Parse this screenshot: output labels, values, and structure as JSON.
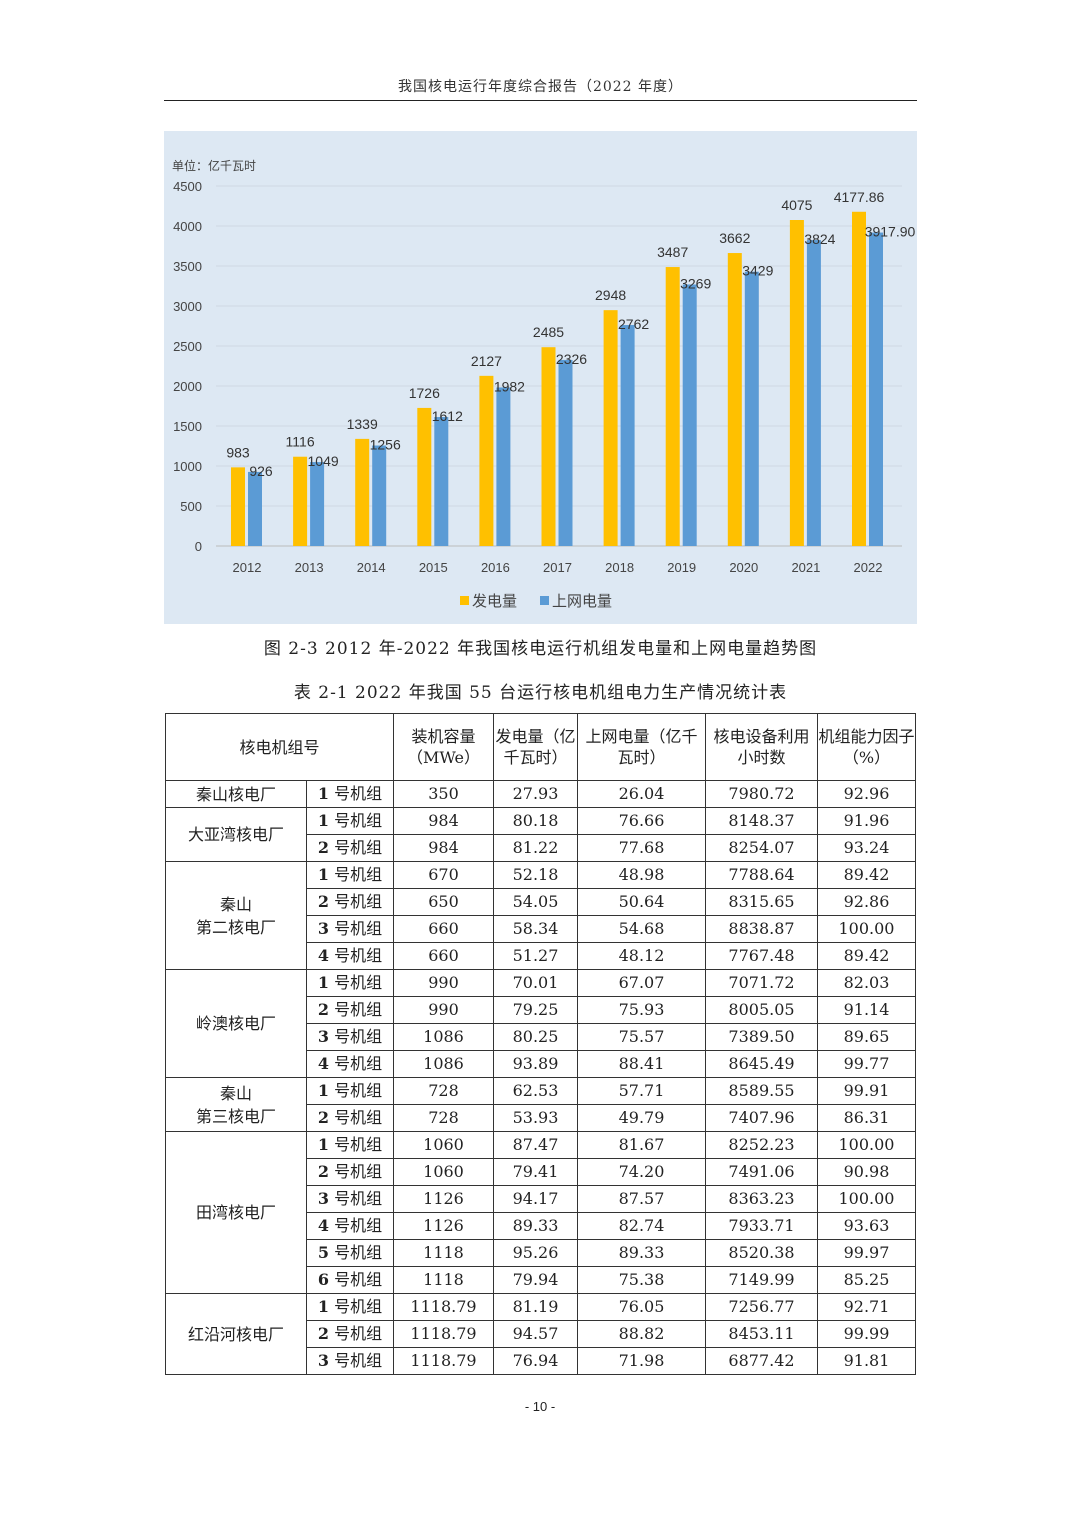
{
  "header": {
    "title": "我国核电运行年度综合报告（2022 年度）"
  },
  "chart_data": {
    "type": "bar",
    "unit_label": "单位：亿千瓦时",
    "categories": [
      "2012",
      "2013",
      "2014",
      "2015",
      "2016",
      "2017",
      "2018",
      "2019",
      "2020",
      "2021",
      "2022"
    ],
    "series": [
      {
        "name": "发电量",
        "color": "#FFC000",
        "values": [
          983,
          1116,
          1339,
          1726,
          2127,
          2485,
          2948,
          3487,
          3662,
          4075,
          4177.86
        ],
        "labels": [
          "983",
          "1116",
          "1339",
          "1726",
          "2127",
          "2485",
          "2948",
          "3487",
          "3662",
          "4075",
          "4177.86"
        ]
      },
      {
        "name": "上网电量",
        "color": "#5B9BD5",
        "values": [
          926,
          1049,
          1256,
          1612,
          1982,
          2326,
          2762,
          3269,
          3429,
          3824,
          3917.9
        ],
        "labels": [
          "926",
          "1049",
          "1256",
          "1612",
          "1982",
          "2326",
          "2762",
          "3269",
          "3429",
          "3824",
          "3917.90"
        ]
      }
    ],
    "yticks": [
      "0",
      "500",
      "1000",
      "1500",
      "2000",
      "2500",
      "3000",
      "3500",
      "4000",
      "4500"
    ],
    "ylim": [
      0,
      4500
    ],
    "grid": true,
    "legend": "bottom",
    "background": "#DDE8F3"
  },
  "figure_caption": "图 2-3 2012 年-2022 年我国核电运行机组发电量和上网电量趋势图",
  "table_caption": "表 2-1 2022 年我国 55 台运行核电机组电力生产情况统计表",
  "table": {
    "headers": [
      "核电机组号",
      "装机容量（MWe）",
      "发电量（亿千瓦时）",
      "上网电量（亿千瓦时）",
      "核电设备利用小时数",
      "机组能力因子（%）"
    ],
    "plants": [
      {
        "name": "秦山核电厂",
        "units": [
          [
            "1",
            "号机组",
            "350",
            "27.93",
            "26.04",
            "7980.72",
            "92.96"
          ]
        ]
      },
      {
        "name": "大亚湾核电厂",
        "units": [
          [
            "1",
            "号机组",
            "984",
            "80.18",
            "76.66",
            "8148.37",
            "91.96"
          ],
          [
            "2",
            "号机组",
            "984",
            "81.22",
            "77.68",
            "8254.07",
            "93.24"
          ]
        ]
      },
      {
        "name": "秦山\n第二核电厂",
        "units": [
          [
            "1",
            "号机组",
            "670",
            "52.18",
            "48.98",
            "7788.64",
            "89.42"
          ],
          [
            "2",
            "号机组",
            "650",
            "54.05",
            "50.64",
            "8315.65",
            "92.86"
          ],
          [
            "3",
            "号机组",
            "660",
            "58.34",
            "54.68",
            "8838.87",
            "100.00"
          ],
          [
            "4",
            "号机组",
            "660",
            "51.27",
            "48.12",
            "7767.48",
            "89.42"
          ]
        ]
      },
      {
        "name": "岭澳核电厂",
        "units": [
          [
            "1",
            "号机组",
            "990",
            "70.01",
            "67.07",
            "7071.72",
            "82.03"
          ],
          [
            "2",
            "号机组",
            "990",
            "79.25",
            "75.93",
            "8005.05",
            "91.14"
          ],
          [
            "3",
            "号机组",
            "1086",
            "80.25",
            "75.57",
            "7389.50",
            "89.65"
          ],
          [
            "4",
            "号机组",
            "1086",
            "93.89",
            "88.41",
            "8645.49",
            "99.77"
          ]
        ]
      },
      {
        "name": "秦山\n第三核电厂",
        "units": [
          [
            "1",
            "号机组",
            "728",
            "62.53",
            "57.71",
            "8589.55",
            "99.91"
          ],
          [
            "2",
            "号机组",
            "728",
            "53.93",
            "49.79",
            "7407.96",
            "86.31"
          ]
        ]
      },
      {
        "name": "田湾核电厂",
        "units": [
          [
            "1",
            "号机组",
            "1060",
            "87.47",
            "81.67",
            "8252.23",
            "100.00"
          ],
          [
            "2",
            "号机组",
            "1060",
            "79.41",
            "74.20",
            "7491.06",
            "90.98"
          ],
          [
            "3",
            "号机组",
            "1126",
            "94.17",
            "87.57",
            "8363.23",
            "100.00"
          ],
          [
            "4",
            "号机组",
            "1126",
            "89.33",
            "82.74",
            "7933.71",
            "93.63"
          ],
          [
            "5",
            "号机组",
            "1118",
            "95.26",
            "89.33",
            "8520.38",
            "99.97"
          ],
          [
            "6",
            "号机组",
            "1118",
            "79.94",
            "75.38",
            "7149.99",
            "85.25"
          ]
        ]
      },
      {
        "name": "红沿河核电厂",
        "units": [
          [
            "1",
            "号机组",
            "1118.79",
            "81.19",
            "76.05",
            "7256.77",
            "92.71"
          ],
          [
            "2",
            "号机组",
            "1118.79",
            "94.57",
            "88.82",
            "8453.11",
            "99.99"
          ],
          [
            "3",
            "号机组",
            "1118.79",
            "76.94",
            "71.98",
            "6877.42",
            "91.81"
          ]
        ]
      }
    ]
  },
  "page_number": "- 10 -"
}
